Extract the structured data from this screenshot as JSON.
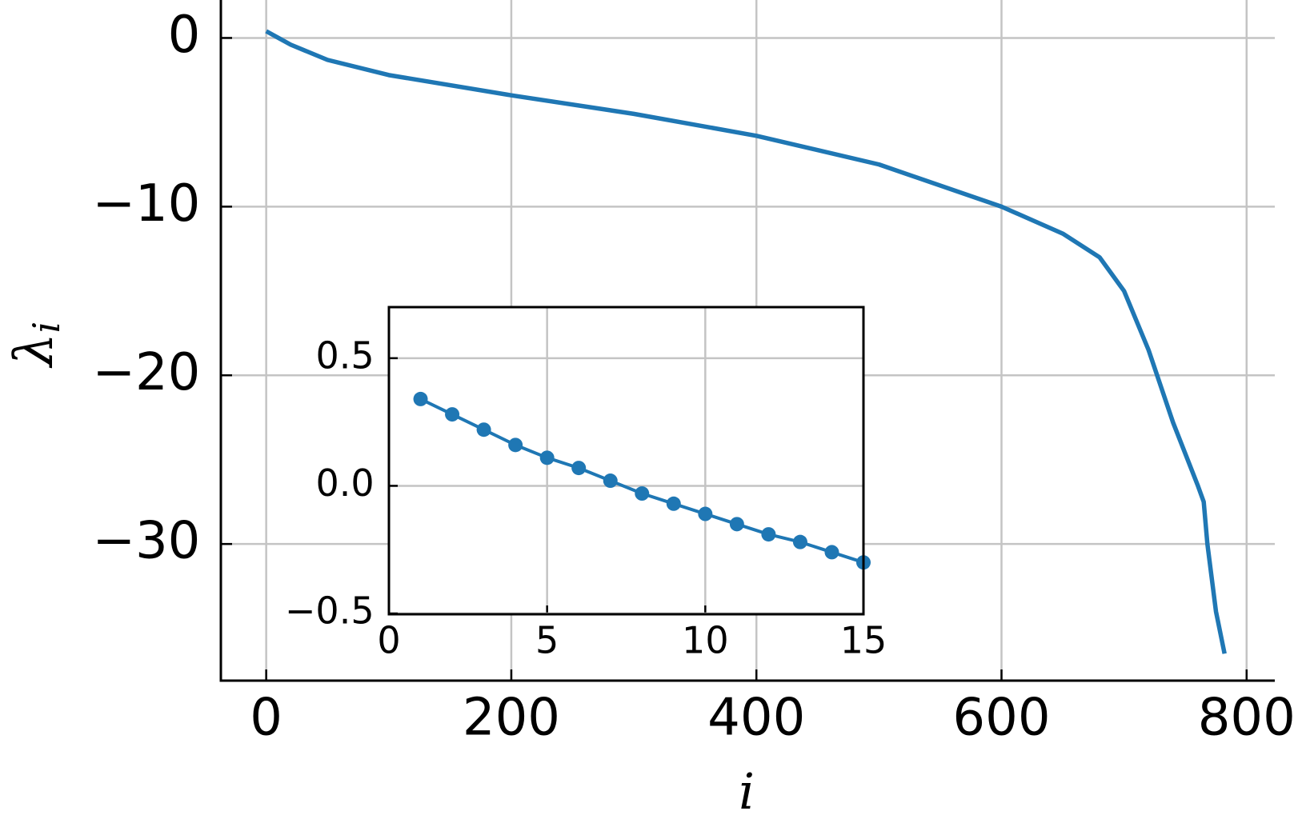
{
  "chart_data": [
    {
      "type": "line",
      "xlabel": "i",
      "ylabel": {
        "symbol": "λ",
        "subscript": "i"
      },
      "x": [
        0,
        10,
        20,
        50,
        100,
        200,
        300,
        400,
        500,
        600,
        650,
        680,
        700,
        720,
        740,
        760,
        765,
        768,
        775,
        782
      ],
      "series": [
        {
          "color": "#1f77b4",
          "values": [
            0.4,
            0.0,
            -0.4,
            -1.3,
            -2.2,
            -3.4,
            -4.5,
            -5.8,
            -7.5,
            -10.0,
            -11.6,
            -13.0,
            -15.0,
            -18.5,
            -22.8,
            -26.5,
            -27.5,
            -30.0,
            -34.0,
            -36.5
          ]
        }
      ],
      "xlim": [
        -37,
        823
      ],
      "ylim": [
        -38.1,
        2.25
      ],
      "xticks": [
        0,
        200,
        400,
        600,
        800
      ],
      "yticks": [
        0,
        {
          "value": -10,
          "label": "−10"
        },
        {
          "value": -20,
          "label": "−20"
        },
        {
          "value": -30,
          "label": "−30"
        }
      ],
      "grid": true,
      "spines": "left-bottom"
    },
    {
      "type": "line",
      "x": [
        1,
        2,
        3,
        4,
        5,
        6,
        7,
        8,
        9,
        10,
        11,
        12,
        13,
        14,
        15
      ],
      "series": [
        {
          "color": "#1f77b4",
          "values": [
            0.34,
            0.28,
            0.22,
            0.16,
            0.11,
            0.07,
            0.02,
            -0.03,
            -0.07,
            -0.11,
            -0.15,
            -0.19,
            -0.22,
            -0.26,
            -0.3
          ]
        }
      ],
      "xlim": [
        0,
        15
      ],
      "ylim": [
        -0.503,
        0.7
      ],
      "xticks": [
        0,
        5,
        10,
        15
      ],
      "yticks": [
        {
          "value": -0.5,
          "label": "−0.5"
        },
        {
          "value": 0,
          "label": "0.0"
        },
        0.5
      ],
      "grid": true,
      "markers": true,
      "spines": "all"
    }
  ]
}
